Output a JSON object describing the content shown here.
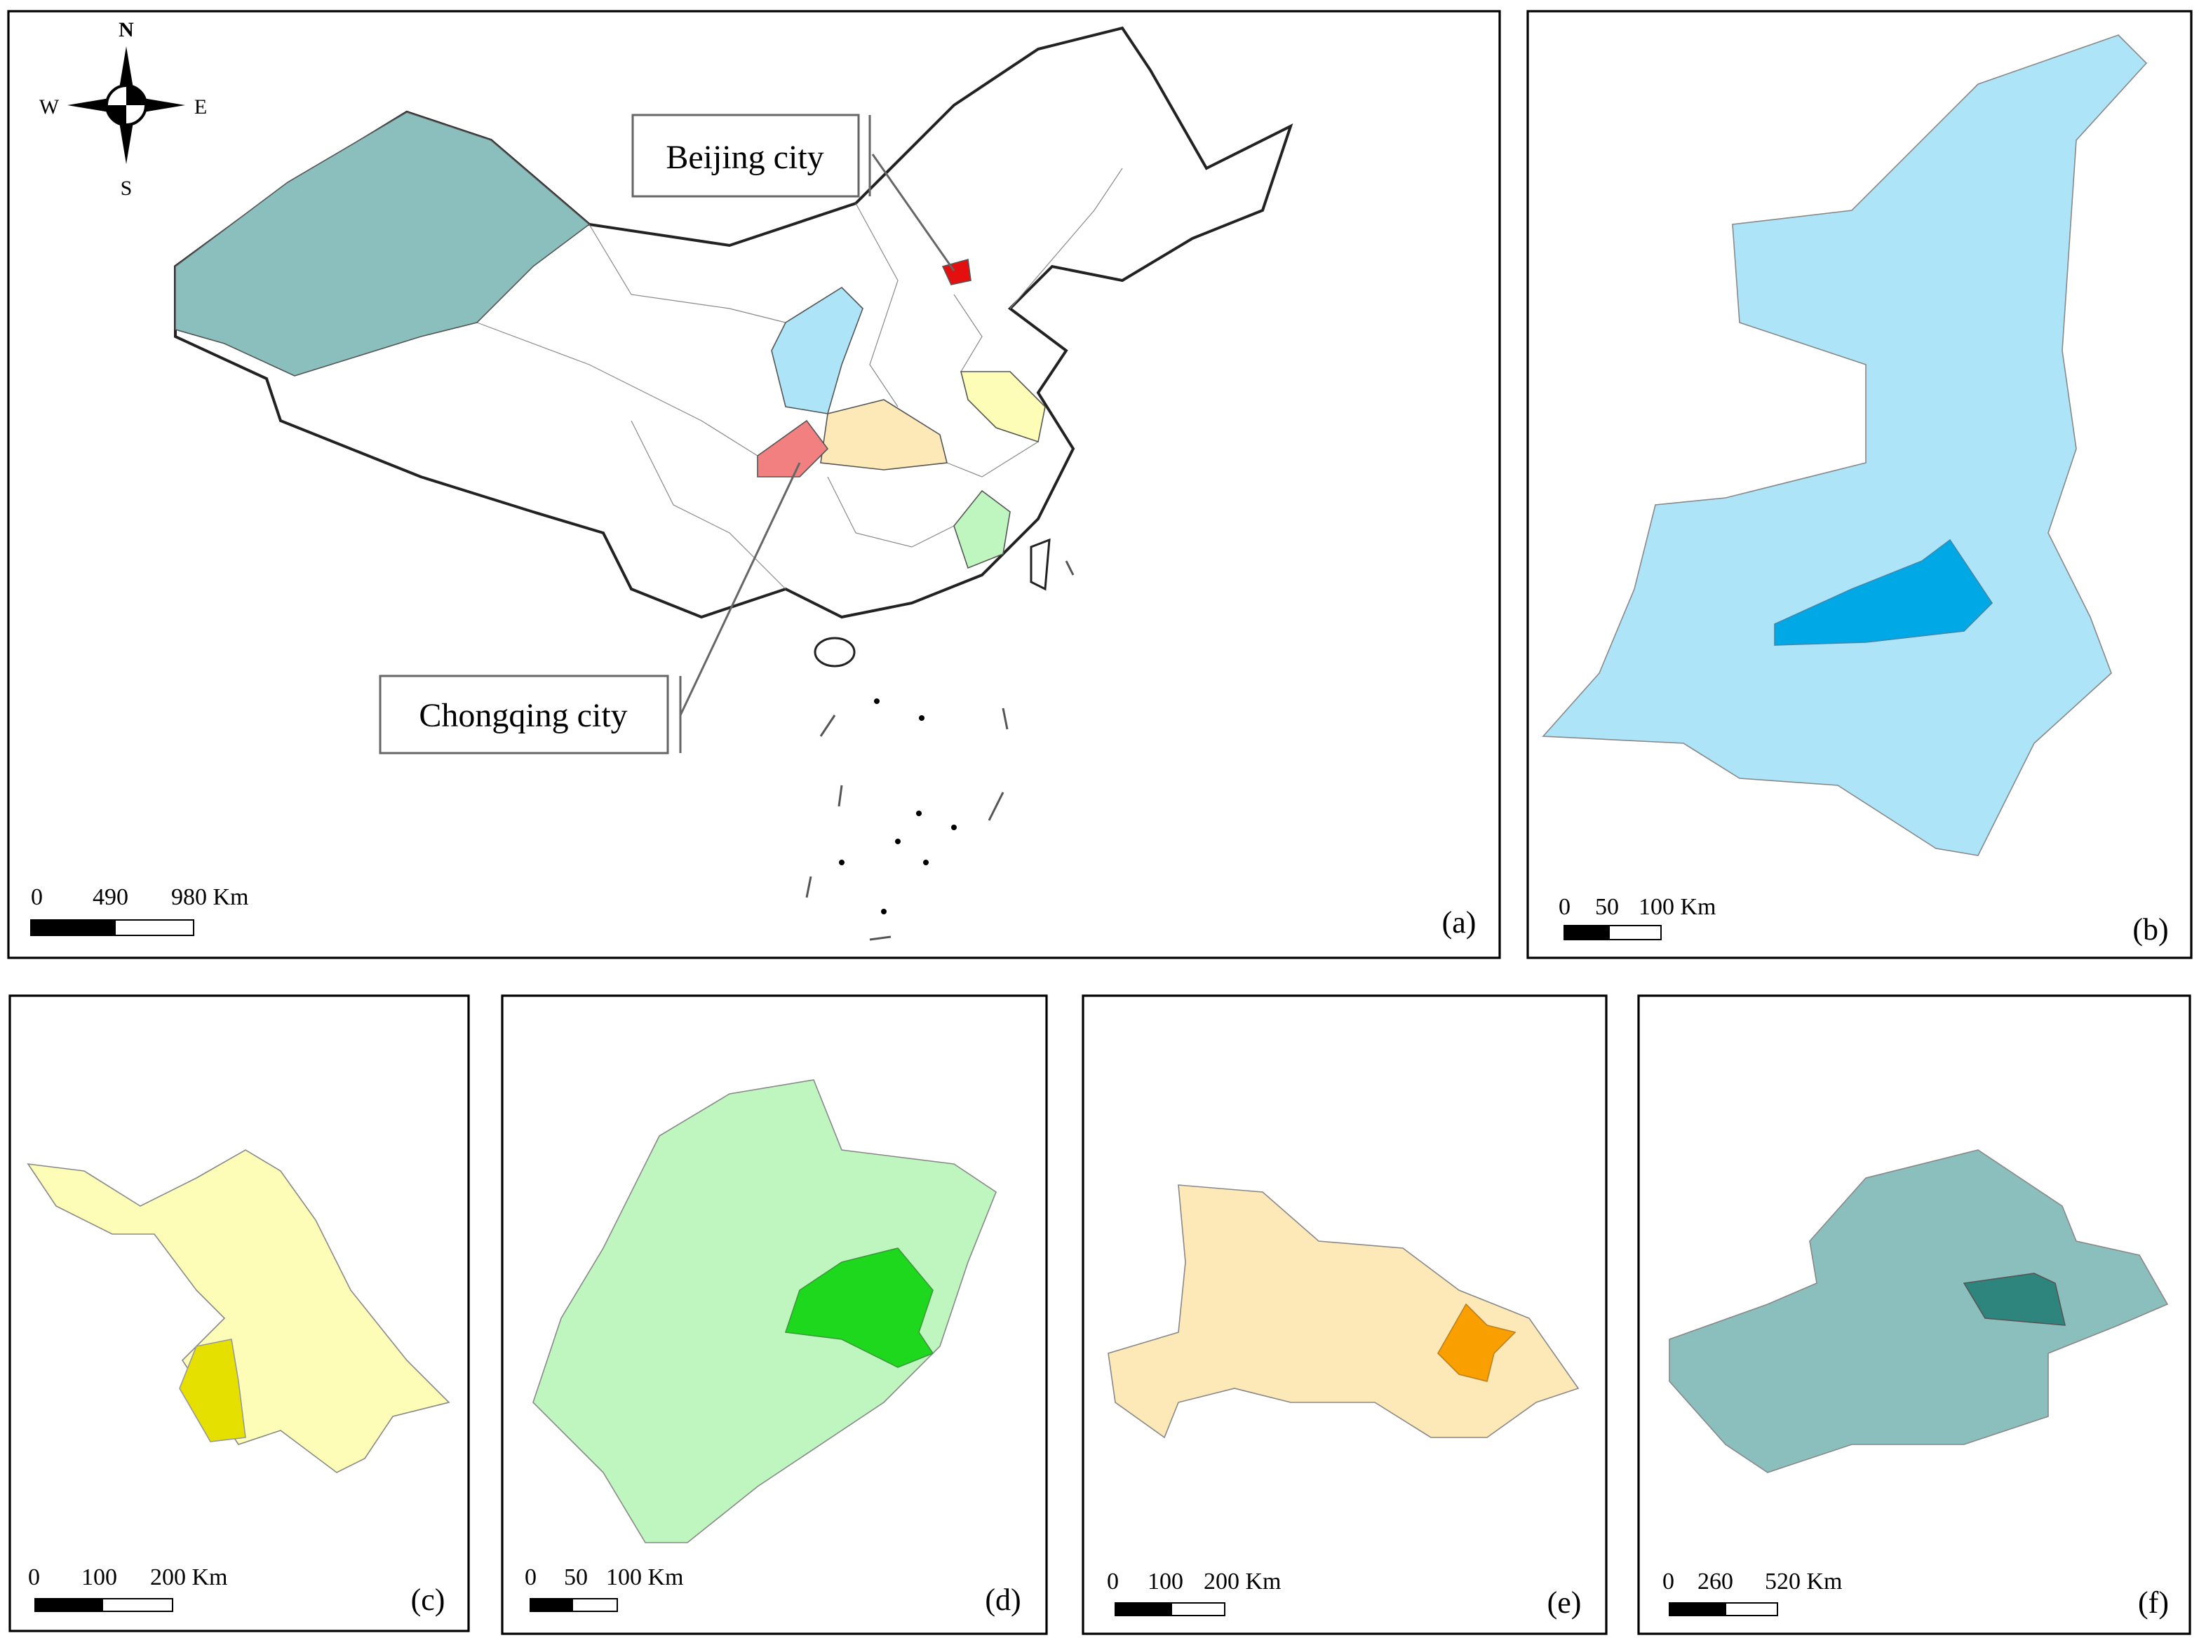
{
  "compass": {
    "north": "N",
    "south": "S",
    "east": "E",
    "west": "W"
  },
  "panels": [
    {
      "label": "(a)",
      "scale": [
        "0",
        "490",
        "980 Km"
      ],
      "callouts": [
        "Beijing city",
        "Chongqing city"
      ]
    },
    {
      "label": "(b)",
      "scale": [
        "0",
        "50",
        "100 Km"
      ]
    },
    {
      "label": "(c)",
      "scale": [
        "0",
        "100",
        "200 Km"
      ]
    },
    {
      "label": "(d)",
      "scale": [
        "0",
        "50",
        "100 Km"
      ]
    },
    {
      "label": "(e)",
      "scale": [
        "0",
        "100",
        "200 Km"
      ]
    },
    {
      "label": "(f)",
      "scale": [
        "0",
        "260",
        "520 Km"
      ]
    }
  ]
}
